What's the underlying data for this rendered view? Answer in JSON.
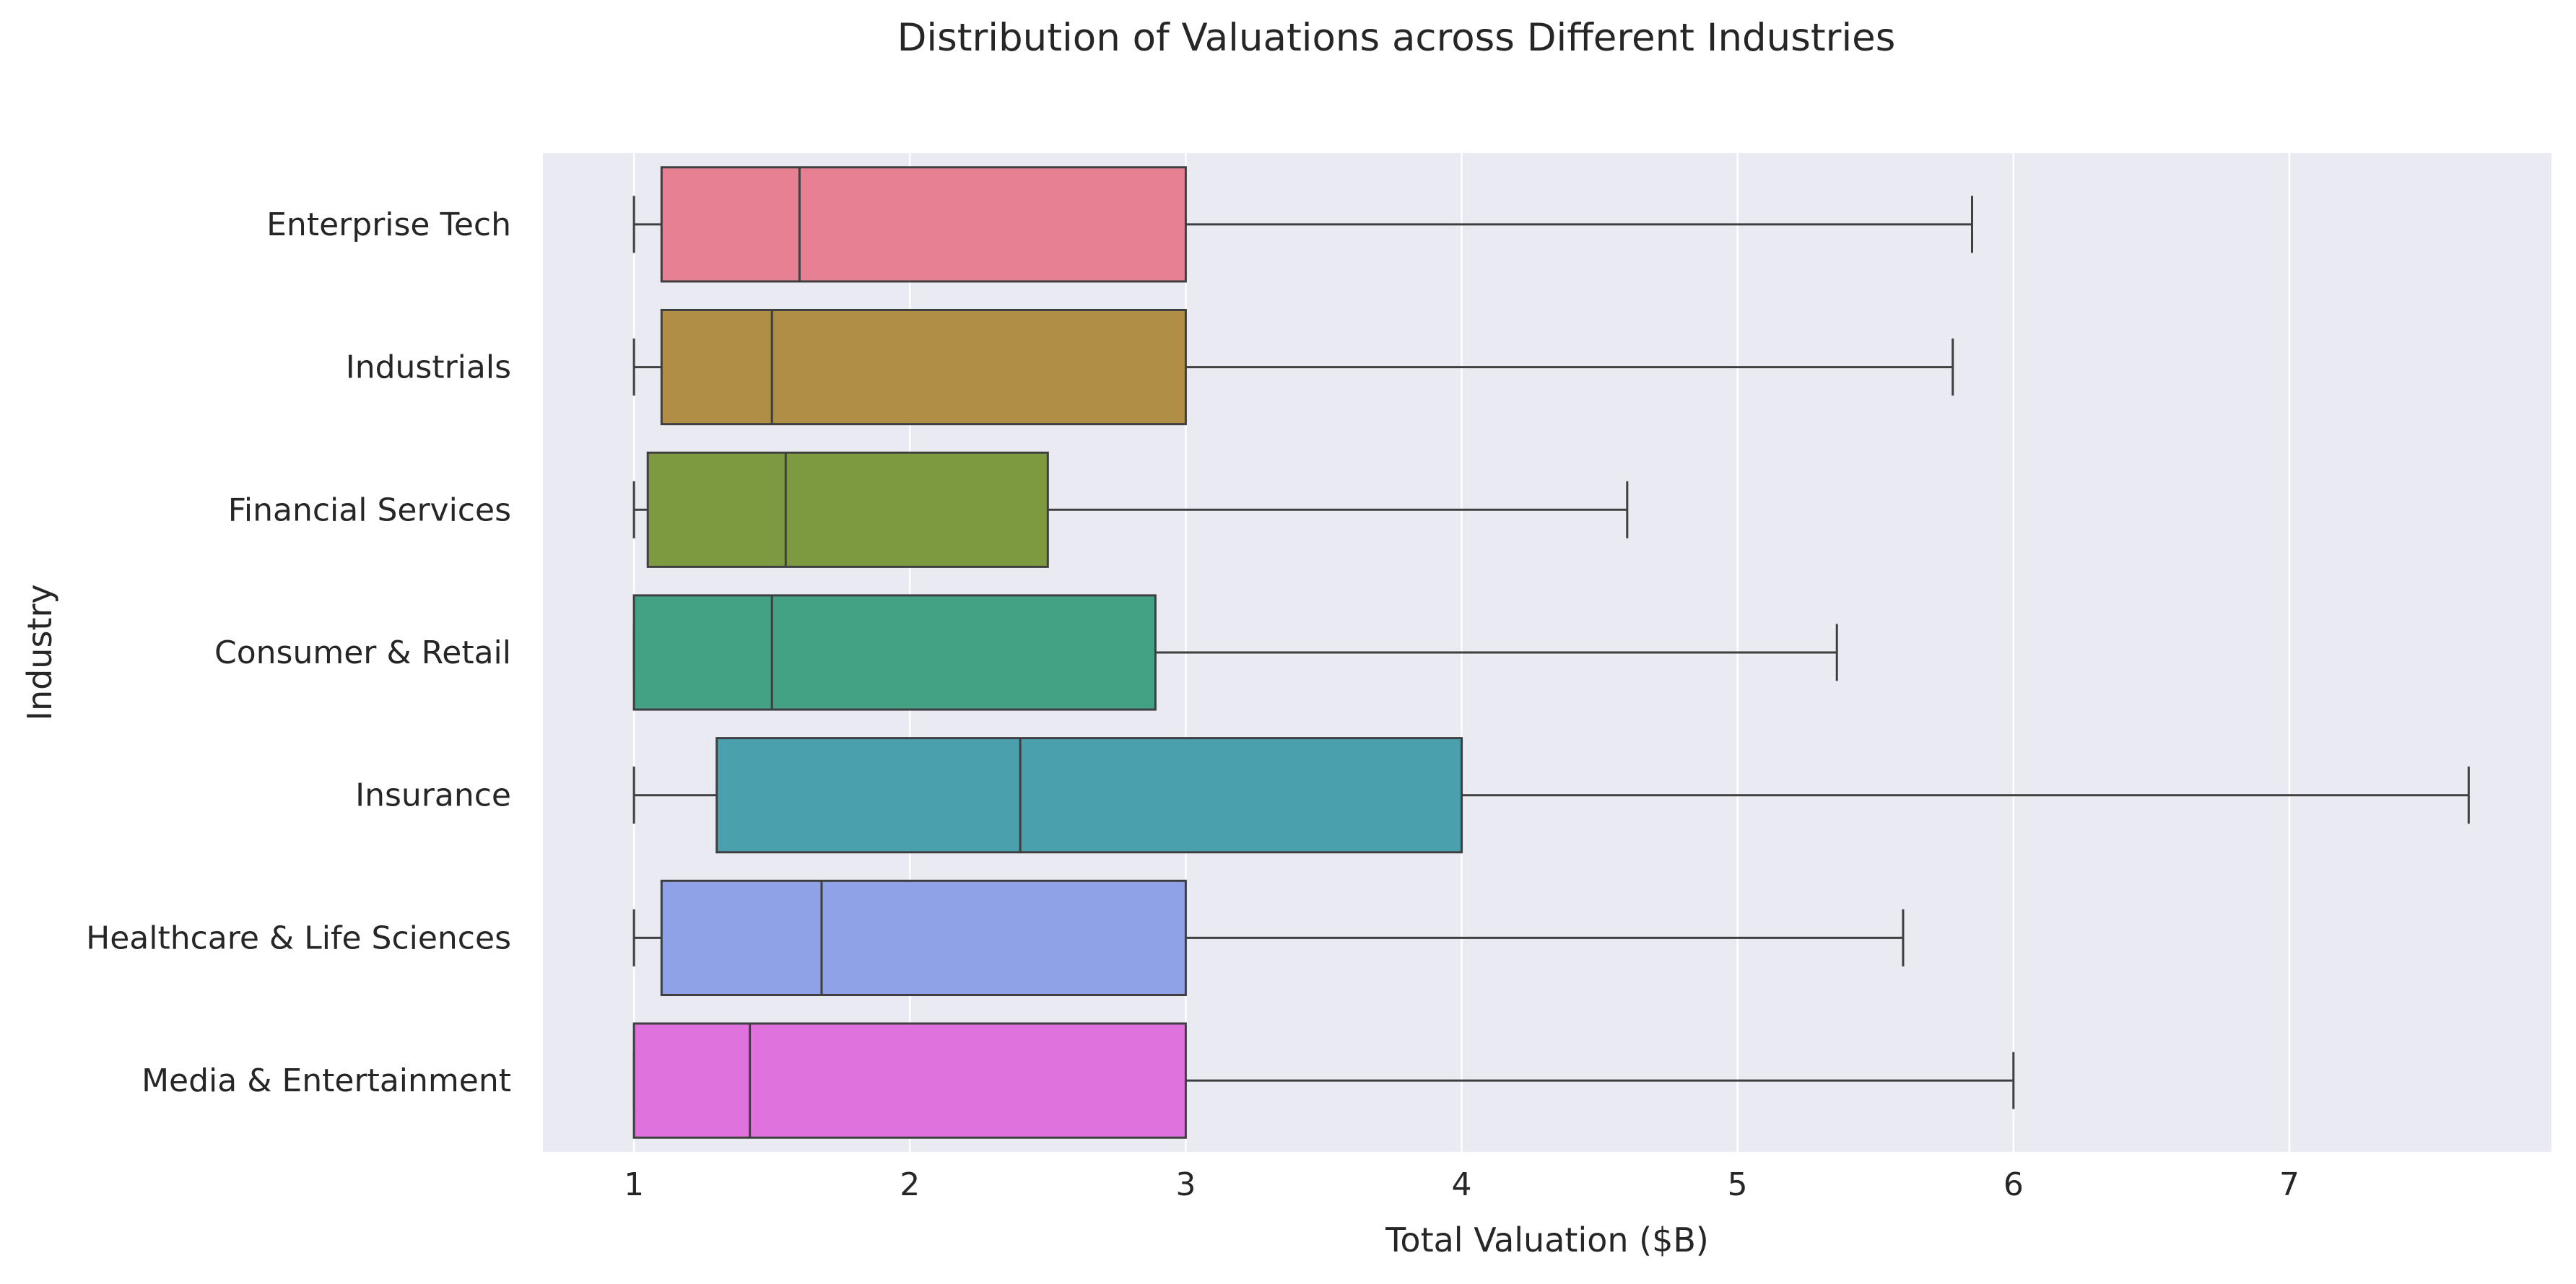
{
  "chart_data": {
    "type": "box",
    "orientation": "horizontal",
    "title": "Distribution of Valuations across Different Industries",
    "xlabel": "Total Valuation ($B)",
    "ylabel": "Industry",
    "xlim": [
      0.67,
      7.95
    ],
    "xticks": [
      1,
      2,
      3,
      4,
      5,
      6,
      7
    ],
    "grid": true,
    "background": "#EAEAF2",
    "grid_color": "#FFFFFF",
    "line_color": "#3F3F3F",
    "categories": [
      "Enterprise Tech",
      "Industrials",
      "Financial Services",
      "Consumer & Retail",
      "Insurance",
      "Healthcare & Life Sciences",
      "Media & Entertainment"
    ],
    "series": [
      {
        "category": "Enterprise Tech",
        "whisker_low": 1.0,
        "q1": 1.1,
        "median": 1.6,
        "q3": 3.0,
        "whisker_high": 5.85,
        "color": "#E88093"
      },
      {
        "category": "Industrials",
        "whisker_low": 1.0,
        "q1": 1.1,
        "median": 1.5,
        "q3": 3.0,
        "whisker_high": 5.78,
        "color": "#B18E45"
      },
      {
        "category": "Financial Services",
        "whisker_low": 1.0,
        "q1": 1.05,
        "median": 1.55,
        "q3": 2.5,
        "whisker_high": 4.6,
        "color": "#7E9A41"
      },
      {
        "category": "Consumer & Retail",
        "whisker_low": 1.0,
        "q1": 1.0,
        "median": 1.5,
        "q3": 2.89,
        "whisker_high": 5.36,
        "color": "#43A184"
      },
      {
        "category": "Insurance",
        "whisker_low": 1.0,
        "q1": 1.3,
        "median": 2.4,
        "q3": 4.0,
        "whisker_high": 7.65,
        "color": "#4AA0AD"
      },
      {
        "category": "Healthcare & Life Sciences",
        "whisker_low": 1.0,
        "q1": 1.1,
        "median": 1.68,
        "q3": 3.0,
        "whisker_high": 5.6,
        "color": "#8FA1E7"
      },
      {
        "category": "Media & Entertainment",
        "whisker_low": 1.0,
        "q1": 1.0,
        "median": 1.42,
        "q3": 3.0,
        "whisker_high": 6.0,
        "color": "#E072DD"
      }
    ]
  }
}
